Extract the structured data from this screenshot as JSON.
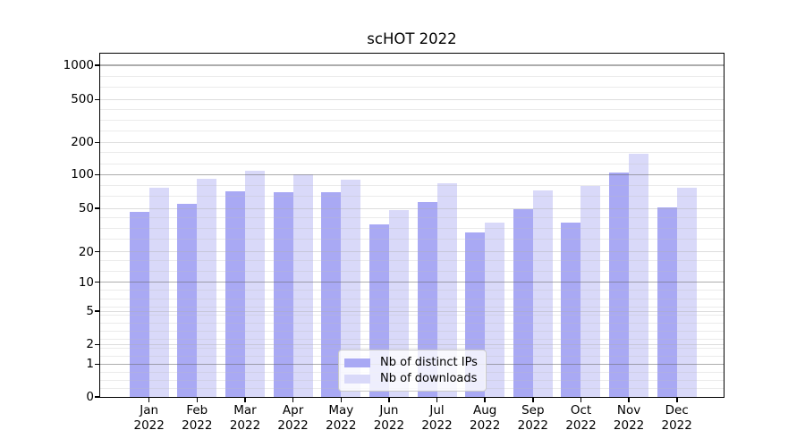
{
  "chart_data": {
    "type": "bar",
    "title": "scHOT 2022",
    "categories": [
      "Jan 2022",
      "Feb 2022",
      "Mar 2022",
      "Apr 2022",
      "May 2022",
      "Jun 2022",
      "Jul 2022",
      "Aug 2022",
      "Sep 2022",
      "Oct 2022",
      "Nov 2022",
      "Dec 2022"
    ],
    "series": [
      {
        "name": "Nb of distinct IPs",
        "color": "#a9a9f4",
        "values": [
          46,
          55,
          71,
          70,
          70,
          36,
          57,
          30,
          49,
          37,
          104,
          51
        ]
      },
      {
        "name": "Nb of downloads",
        "color": "#d9d9f9",
        "values": [
          77,
          92,
          108,
          100,
          90,
          48,
          84,
          37,
          72,
          80,
          156,
          77
        ]
      }
    ],
    "y_ticks": [
      0,
      1,
      2,
      5,
      10,
      20,
      50,
      100,
      200,
      500,
      1000
    ],
    "y_scale": "pseudo-log",
    "ylim": [
      0,
      1290
    ],
    "xlabel": "",
    "ylabel": "",
    "grid": true,
    "legend_position": "lower center",
    "colors": {
      "axis": "#000000",
      "grid_major": "#b0b0b0",
      "grid_minor": "#e3e3e3",
      "background": "#ffffff"
    }
  }
}
